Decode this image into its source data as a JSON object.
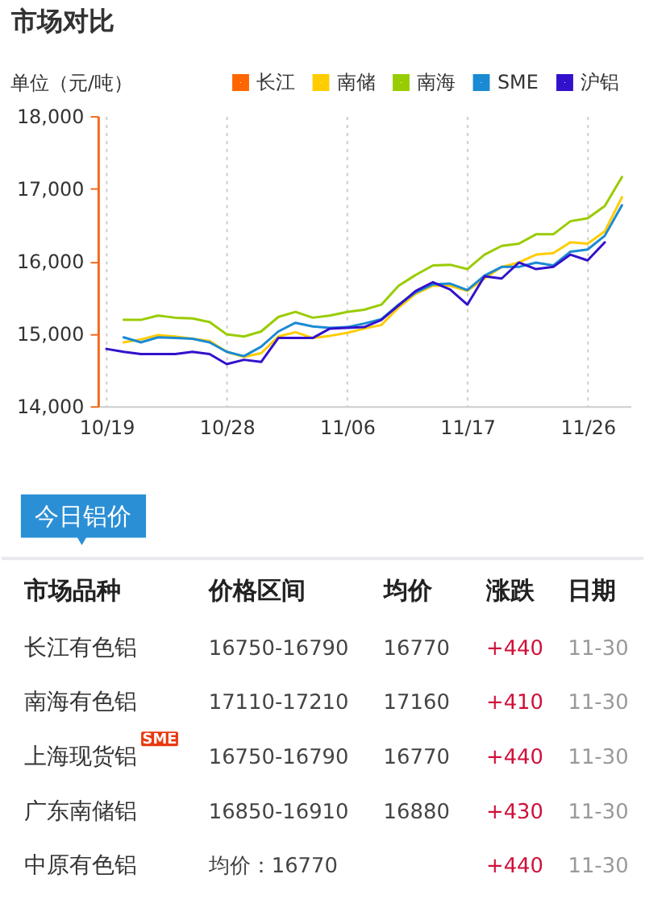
{
  "chart_data": [
    {
      "type": "line",
      "title": "市场对比",
      "ylabel": "单位（元/吨）",
      "categories": [
        "10/19",
        null,
        null,
        null,
        null,
        null,
        null,
        "10/28",
        null,
        null,
        null,
        null,
        null,
        null,
        "11/06",
        null,
        null,
        null,
        null,
        null,
        null,
        "11/17",
        null,
        null,
        null,
        null,
        null,
        null,
        "11/26",
        null,
        null
      ],
      "series": [
        {
          "name": "长江",
          "color": "#ff6600",
          "values": [
            null,
            null,
            null,
            null,
            null,
            null,
            null,
            null,
            null,
            null,
            null,
            null,
            null,
            null,
            null,
            null,
            null,
            null,
            null,
            null,
            null,
            null,
            null,
            null,
            null,
            null,
            null,
            null,
            null,
            null,
            null
          ]
        },
        {
          "name": "南储",
          "color": "#ffcc00",
          "values": [
            null,
            14880,
            14920,
            14980,
            14960,
            14930,
            14900,
            14750,
            14680,
            14730,
            14960,
            15020,
            14940,
            14970,
            15010,
            15070,
            15120,
            15360,
            15550,
            15660,
            15660,
            15590,
            15760,
            15920,
            15980,
            16090,
            16110,
            16260,
            16240,
            16410,
            16880
          ]
        },
        {
          "name": "南海",
          "color": "#99cc00",
          "values": [
            null,
            15190,
            15190,
            15250,
            15220,
            15210,
            15160,
            14990,
            14960,
            15030,
            15230,
            15300,
            15220,
            15250,
            15300,
            15330,
            15400,
            15660,
            15810,
            15940,
            15950,
            15890,
            16090,
            16210,
            16240,
            16370,
            16370,
            16550,
            16590,
            16760,
            17160
          ]
        },
        {
          "name": "SME",
          "color": "#1a8ad4",
          "values": [
            null,
            14950,
            14880,
            14950,
            14940,
            14930,
            14880,
            14750,
            14690,
            14820,
            15030,
            15150,
            15100,
            15080,
            15090,
            15140,
            15200,
            15400,
            15570,
            15680,
            15690,
            15600,
            15800,
            15920,
            15920,
            15980,
            15940,
            16130,
            16160,
            16350,
            16770
          ]
        },
        {
          "name": "沪铝",
          "color": "#3311cc",
          "values": [
            14790,
            14750,
            14720,
            14720,
            14720,
            14750,
            14720,
            14580,
            14640,
            14610,
            14940,
            14940,
            14940,
            15070,
            15080,
            15090,
            15190,
            15390,
            15590,
            15710,
            15610,
            15400,
            15790,
            15760,
            15980,
            15890,
            15920,
            16090,
            16010,
            16260,
            null
          ]
        }
      ],
      "ylim": [
        14000,
        18000
      ],
      "yticks": [
        {
          "value": 14000,
          "label": "14,000"
        },
        {
          "value": 15000,
          "label": "15,000"
        },
        {
          "value": 16000,
          "label": "16,000"
        },
        {
          "value": 17000,
          "label": "17,000"
        },
        {
          "value": 18000,
          "label": "18,000"
        }
      ],
      "grid": "x",
      "legend": "top",
      "line_style": "solid"
    },
    {
      "type": "other",
      "title": "今日铝价",
      "ylabel": "市场品种",
      "categories": [
        "价格区间",
        "均价",
        "涨跌",
        "日期"
      ],
      "y_categories": [
        "长江有色铝",
        "南海有色铝",
        "上海现货铝",
        "广东南储铝",
        "中原有色铝"
      ],
      "cell_labels": [
        [
          "16750-16790",
          "16770",
          "+440",
          "11-30"
        ],
        [
          "17110-17210",
          "17160",
          "+410",
          "11-30"
        ],
        [
          "16750-16790",
          "16770",
          "+440",
          "11-30"
        ],
        [
          "16850-16910",
          "16880",
          "+430",
          "11-30"
        ],
        [
          "均价：16770",
          null,
          "+440",
          "11-30"
        ]
      ],
      "annotations": [
        {
          "text": "SME",
          "y": "上海现货铝"
        }
      ]
    }
  ]
}
